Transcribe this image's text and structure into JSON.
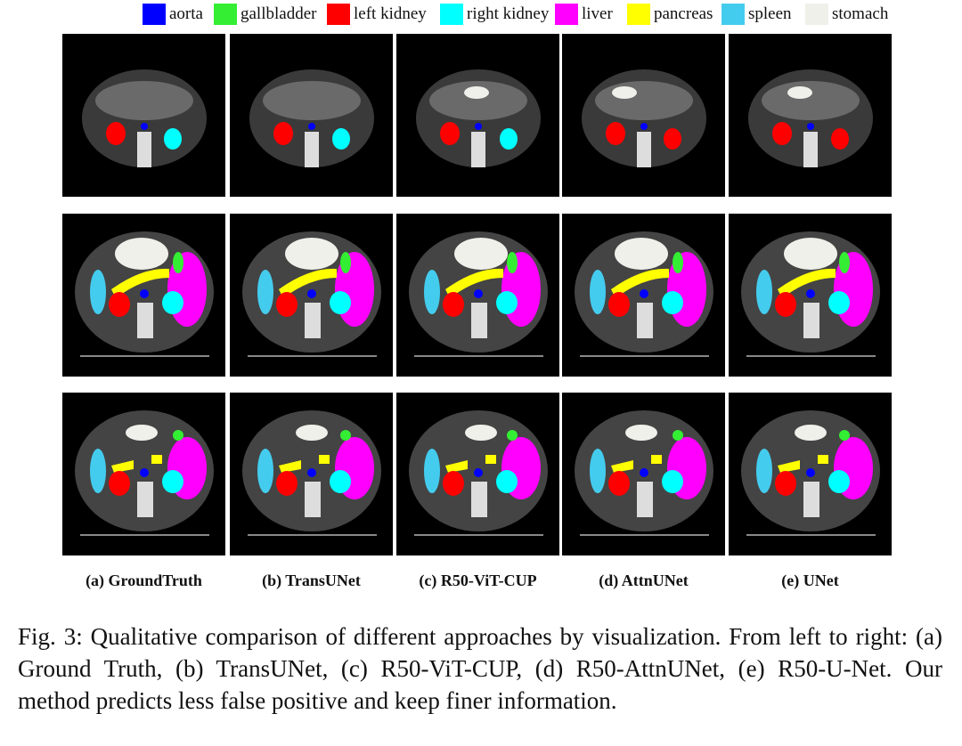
{
  "legend": [
    {
      "label": "aorta",
      "color": "#0000ff"
    },
    {
      "label": "gallbladder",
      "color": "#33ee33"
    },
    {
      "label": "left kidney",
      "color": "#ff0000"
    },
    {
      "label": "right kidney",
      "color": "#00ffff"
    },
    {
      "label": "liver",
      "color": "#ff00ff"
    },
    {
      "label": "pancreas",
      "color": "#ffff00"
    },
    {
      "label": "spleen",
      "color": "#44ccee"
    },
    {
      "label": "stomach",
      "color": "#f0f0ea"
    }
  ],
  "columns": [
    "(a) GroundTruth",
    "(b) TransUNet",
    "(c) R50-ViT-CUP",
    "(d) AttnUNet",
    "(e) UNet"
  ],
  "caption": "Fig. 3: Qualitative comparison of different approaches by visualization. From left to right: (a) Ground Truth, (b) TransUNet, (c) R50-ViT-CUP, (d) R50-AttnUNet, (e) R50-U-Net. Our method predicts less false positive and keep finer information."
}
